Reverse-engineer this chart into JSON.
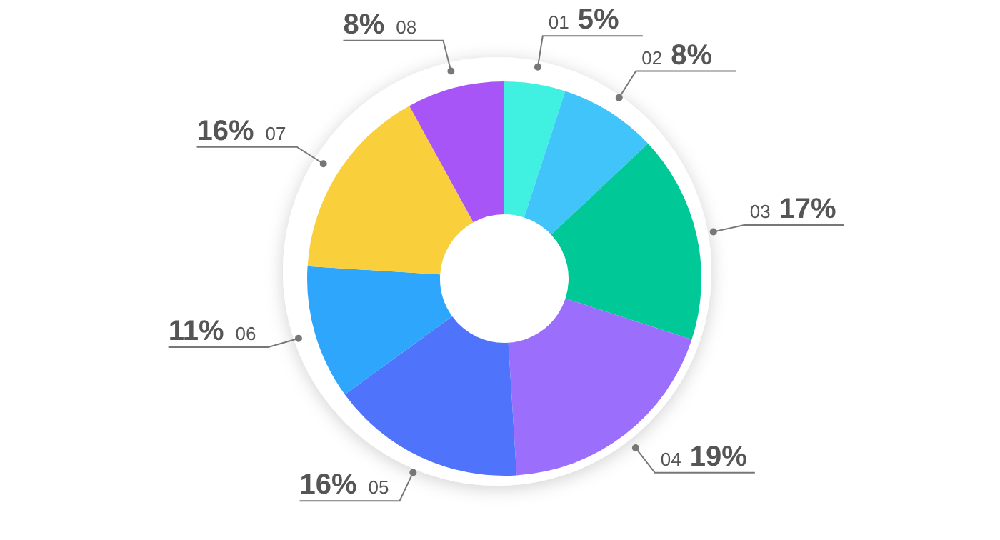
{
  "chart_data": {
    "type": "donut",
    "categories": [
      "01",
      "02",
      "03",
      "04",
      "05",
      "06",
      "07",
      "08"
    ],
    "values": [
      5,
      8,
      17,
      19,
      16,
      11,
      16,
      8
    ],
    "value_labels": [
      "5%",
      "8%",
      "17%",
      "19%",
      "16%",
      "11%",
      "16%",
      "8%"
    ],
    "colors": [
      "#40f0e0",
      "#40c4fa",
      "#00c896",
      "#9b6ffb",
      "#4f73fb",
      "#2ea6fb",
      "#f9cf3c",
      "#a855f7"
    ]
  }
}
